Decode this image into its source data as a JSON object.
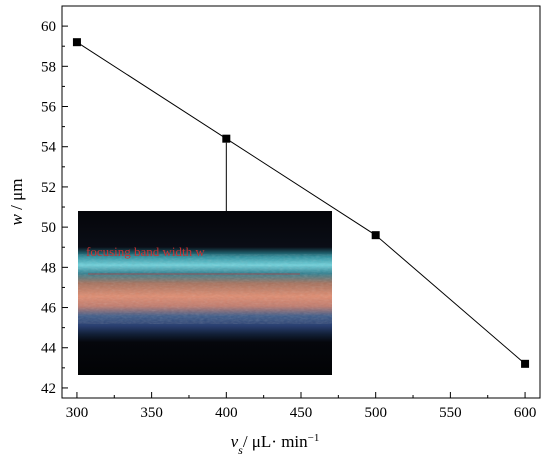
{
  "chart_data": {
    "type": "line",
    "xlabel": {
      "var": "v",
      "sub": "s",
      "units": "/ μL· min",
      "sup": "−1"
    },
    "ylabel": {
      "var": "w",
      "units": " / μm"
    },
    "xlim": [
      290,
      610
    ],
    "ylim": [
      41.5,
      61
    ],
    "x_ticks": [
      300,
      350,
      400,
      450,
      500,
      550,
      600
    ],
    "y_ticks": [
      42,
      44,
      46,
      48,
      50,
      52,
      54,
      56,
      58,
      60
    ],
    "grid": false,
    "series": [
      {
        "x": [
          300,
          400,
          500,
          600
        ],
        "y": [
          59.2,
          54.4,
          49.6,
          43.2
        ],
        "marker": "square",
        "color": "#000000"
      }
    ],
    "inset": {
      "label": "focusing band width w",
      "label_color": "#c83232",
      "pointer_from": {
        "x": 400,
        "y": 54.4
      }
    }
  }
}
